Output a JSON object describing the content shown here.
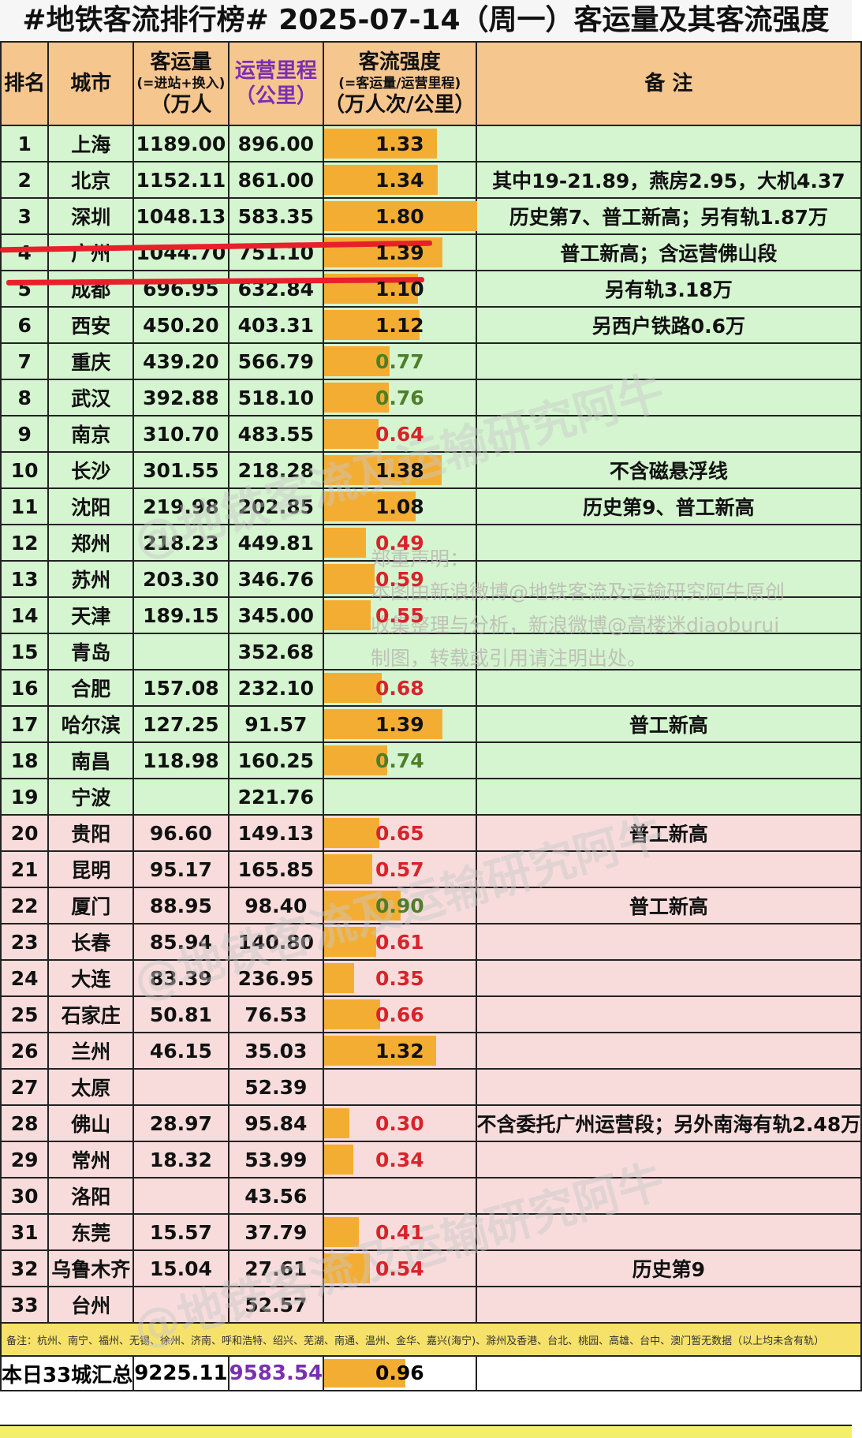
{
  "title": "#地铁客流排行榜# 2025-07-14（周一）客运量及其客流强度",
  "headers": {
    "rank": "排名",
    "city": "城市",
    "ridership": [
      "客运量",
      "(=进站+换入)",
      "（万人"
    ],
    "mileage": [
      "运营里程",
      "（公里）"
    ],
    "intensity": [
      "客流强度",
      "(=客运量/运营里程)",
      "（万人次/公里）"
    ],
    "remark": "备 注"
  },
  "rows": [
    {
      "rank": "1",
      "city": "上海",
      "ridership": "1189.00",
      "km": "896.00",
      "intensity": "1.33",
      "level": 1.33,
      "color": "#111111",
      "remark": ""
    },
    {
      "rank": "2",
      "city": "北京",
      "ridership": "1152.11",
      "km": "861.00",
      "intensity": "1.34",
      "level": 1.34,
      "color": "#111111",
      "remark": "其中19-21.89，燕房2.95，大机4.37"
    },
    {
      "rank": "3",
      "city": "深圳",
      "ridership": "1048.13",
      "km": "583.35",
      "intensity": "1.80",
      "level": 1.8,
      "color": "#111111",
      "remark": "历史第7、普工新高；另有轨1.87万"
    },
    {
      "rank": "4",
      "city": "广州",
      "ridership": "1044.70",
      "km": "751.10",
      "intensity": "1.39",
      "level": 1.39,
      "color": "#111111",
      "remark": "普工新高；含运营佛山段"
    },
    {
      "rank": "5",
      "city": "成都",
      "ridership": "696.95",
      "km": "632.84",
      "intensity": "1.10",
      "level": 1.1,
      "color": "#111111",
      "remark": "另有轨3.18万"
    },
    {
      "rank": "6",
      "city": "西安",
      "ridership": "450.20",
      "km": "403.31",
      "intensity": "1.12",
      "level": 1.12,
      "color": "#111111",
      "remark": "另西户铁路0.6万"
    },
    {
      "rank": "7",
      "city": "重庆",
      "ridership": "439.20",
      "km": "566.79",
      "intensity": "0.77",
      "level": 0.77,
      "color": "#4e7e2a",
      "remark": ""
    },
    {
      "rank": "8",
      "city": "武汉",
      "ridership": "392.88",
      "km": "518.10",
      "intensity": "0.76",
      "level": 0.76,
      "color": "#4e7e2a",
      "remark": ""
    },
    {
      "rank": "9",
      "city": "南京",
      "ridership": "310.70",
      "km": "483.55",
      "intensity": "0.64",
      "level": 0.64,
      "color": "#d8232a",
      "remark": ""
    },
    {
      "rank": "10",
      "city": "长沙",
      "ridership": "301.55",
      "km": "218.28",
      "intensity": "1.38",
      "level": 1.38,
      "color": "#111111",
      "remark": "不含磁悬浮线"
    },
    {
      "rank": "11",
      "city": "沈阳",
      "ridership": "219.98",
      "km": "202.85",
      "intensity": "1.08",
      "level": 1.08,
      "color": "#111111",
      "remark": "历史第9、普工新高"
    },
    {
      "rank": "12",
      "city": "郑州",
      "ridership": "218.23",
      "km": "449.81",
      "intensity": "0.49",
      "level": 0.49,
      "color": "#d8232a",
      "remark": ""
    },
    {
      "rank": "13",
      "city": "苏州",
      "ridership": "203.30",
      "km": "346.76",
      "intensity": "0.59",
      "level": 0.59,
      "color": "#d8232a",
      "remark": ""
    },
    {
      "rank": "14",
      "city": "天津",
      "ridership": "189.15",
      "km": "345.00",
      "intensity": "0.55",
      "level": 0.55,
      "color": "#d8232a",
      "remark": ""
    },
    {
      "rank": "15",
      "city": "青岛",
      "ridership": "",
      "km": "352.68",
      "intensity": "",
      "level": 0,
      "color": "#111111",
      "remark": ""
    },
    {
      "rank": "16",
      "city": "合肥",
      "ridership": "157.08",
      "km": "232.10",
      "intensity": "0.68",
      "level": 0.68,
      "color": "#d8232a",
      "remark": ""
    },
    {
      "rank": "17",
      "city": "哈尔滨",
      "ridership": "127.25",
      "km": "91.57",
      "intensity": "1.39",
      "level": 1.39,
      "color": "#111111",
      "remark": "普工新高"
    },
    {
      "rank": "18",
      "city": "南昌",
      "ridership": "118.98",
      "km": "160.25",
      "intensity": "0.74",
      "level": 0.74,
      "color": "#4e7e2a",
      "remark": ""
    },
    {
      "rank": "19",
      "city": "宁波",
      "ridership": "",
      "km": "221.76",
      "intensity": "",
      "level": 0,
      "color": "#111111",
      "remark": ""
    },
    {
      "rank": "20",
      "city": "贵阳",
      "ridership": "96.60",
      "km": "149.13",
      "intensity": "0.65",
      "level": 0.65,
      "color": "#d8232a",
      "remark": "普工新高"
    },
    {
      "rank": "21",
      "city": "昆明",
      "ridership": "95.17",
      "km": "165.85",
      "intensity": "0.57",
      "level": 0.57,
      "color": "#d8232a",
      "remark": ""
    },
    {
      "rank": "22",
      "city": "厦门",
      "ridership": "88.95",
      "km": "98.40",
      "intensity": "0.90",
      "level": 0.9,
      "color": "#4e7e2a",
      "remark": "普工新高"
    },
    {
      "rank": "23",
      "city": "长春",
      "ridership": "85.94",
      "km": "140.80",
      "intensity": "0.61",
      "level": 0.61,
      "color": "#d8232a",
      "remark": ""
    },
    {
      "rank": "24",
      "city": "大连",
      "ridership": "83.39",
      "km": "236.95",
      "intensity": "0.35",
      "level": 0.35,
      "color": "#d8232a",
      "remark": ""
    },
    {
      "rank": "25",
      "city": "石家庄",
      "ridership": "50.81",
      "km": "76.53",
      "intensity": "0.66",
      "level": 0.66,
      "color": "#d8232a",
      "remark": ""
    },
    {
      "rank": "26",
      "city": "兰州",
      "ridership": "46.15",
      "km": "35.03",
      "intensity": "1.32",
      "level": 1.32,
      "color": "#111111",
      "remark": ""
    },
    {
      "rank": "27",
      "city": "太原",
      "ridership": "",
      "km": "52.39",
      "intensity": "",
      "level": 0,
      "color": "#111111",
      "remark": ""
    },
    {
      "rank": "28",
      "city": "佛山",
      "ridership": "28.97",
      "km": "95.84",
      "intensity": "0.30",
      "level": 0.3,
      "color": "#d8232a",
      "remark": "不含委托广州运营段；另外南海有轨2.48万"
    },
    {
      "rank": "29",
      "city": "常州",
      "ridership": "18.32",
      "km": "53.99",
      "intensity": "0.34",
      "level": 0.34,
      "color": "#d8232a",
      "remark": ""
    },
    {
      "rank": "30",
      "city": "洛阳",
      "ridership": "",
      "km": "43.56",
      "intensity": "",
      "level": 0,
      "color": "#111111",
      "remark": ""
    },
    {
      "rank": "31",
      "city": "东莞",
      "ridership": "15.57",
      "km": "37.79",
      "intensity": "0.41",
      "level": 0.41,
      "color": "#d8232a",
      "remark": ""
    },
    {
      "rank": "32",
      "city": "乌鲁木齐",
      "ridership": "15.04",
      "km": "27.61",
      "intensity": "0.54",
      "level": 0.54,
      "color": "#d8232a",
      "remark": "历史第9"
    },
    {
      "rank": "33",
      "city": "台州",
      "ridership": "",
      "km": "52.57",
      "intensity": "",
      "level": 0,
      "color": "#111111",
      "remark": ""
    }
  ],
  "note": "备注：杭州、南宁、福州、无锡、徐州、济南、呼和浩特、绍兴、芜湖、南通、温州、金华、嘉兴(海宁)、滁州及香港、台北、桃园、高雄、台中、澳门暂无数据（以上均未含有轨）",
  "total": {
    "label": "本日33城汇总",
    "ridership": "9225.11",
    "km": "9583.54",
    "intensity": "0.96",
    "level": 0.96
  },
  "watermark": {
    "lines": [
      "郑重声明：",
      "本图由新浪微博@地铁客流及运输研究阿牛原创",
      "收集整理与分析，新浪微博@高楼迷diaoburui",
      "制图，转载或引用请注明出处。"
    ],
    "diagonal": "@地铁客流及运输研究阿牛"
  }
}
